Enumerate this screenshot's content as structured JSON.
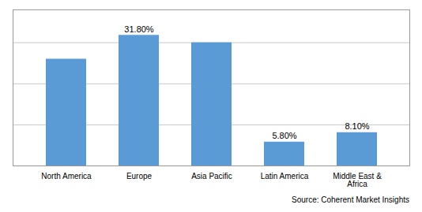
{
  "chart_data": {
    "type": "bar",
    "categories": [
      "North America",
      "Europe",
      "Asia Pacific",
      "Latin America",
      "Middle East &\nAfrica"
    ],
    "values": [
      26.0,
      31.8,
      30.0,
      5.8,
      8.1
    ],
    "value_labels": [
      null,
      "31.80%",
      null,
      "5.80%",
      "8.10%"
    ],
    "data_labels": true,
    "color": "#5B9BD5",
    "ylim": [
      0,
      38
    ],
    "yticks": [
      0,
      10,
      20,
      30
    ],
    "grid": true,
    "tick_labels": "x",
    "caption": "Source: Coherent Market Insights"
  }
}
